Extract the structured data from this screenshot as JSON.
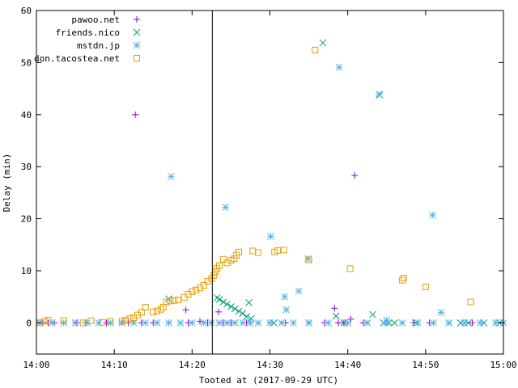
{
  "chart_data": {
    "type": "scatter",
    "title": "",
    "xlabel": "Tooted at (2017-09-29 UTC)",
    "ylabel": "Delay (min)",
    "xlim": [
      0,
      60
    ],
    "ylim": [
      -6,
      60
    ],
    "x_unit": "minutes after 14:00 UTC",
    "x_ticks": [
      {
        "value": 0,
        "label": "14:00"
      },
      {
        "value": 10,
        "label": "14:10"
      },
      {
        "value": 20,
        "label": "14:20"
      },
      {
        "value": 30,
        "label": "14:30"
      },
      {
        "value": 40,
        "label": "14:40"
      },
      {
        "value": 50,
        "label": "14:50"
      },
      {
        "value": 60,
        "label": "15:00"
      }
    ],
    "y_ticks": [
      0,
      10,
      20,
      30,
      40,
      50,
      60
    ],
    "grid": false,
    "legend_position": "top-left",
    "vertical_line": {
      "x": 22.6
    },
    "series": [
      {
        "name": "pawoo.net",
        "marker": "plus",
        "color": "#9400d3",
        "points": [
          [
            0.8,
            0
          ],
          [
            1.5,
            0
          ],
          [
            2.3,
            0
          ],
          [
            5.0,
            0
          ],
          [
            5.2,
            0
          ],
          [
            6.3,
            0
          ],
          [
            9.0,
            0
          ],
          [
            11.0,
            0
          ],
          [
            11.8,
            0
          ],
          [
            12.7,
            40.0
          ],
          [
            13.5,
            0
          ],
          [
            15.0,
            0
          ],
          [
            17.0,
            0
          ],
          [
            19.2,
            2.5
          ],
          [
            19.5,
            0
          ],
          [
            21.0,
            0.3
          ],
          [
            22.0,
            0
          ],
          [
            23.4,
            2.1
          ],
          [
            24.0,
            0
          ],
          [
            25.0,
            0
          ],
          [
            27.0,
            0
          ],
          [
            30.0,
            0
          ],
          [
            32.0,
            0
          ],
          [
            35.0,
            0
          ],
          [
            37.0,
            0
          ],
          [
            38.3,
            2.8
          ],
          [
            38.8,
            0
          ],
          [
            39.5,
            0
          ],
          [
            40.4,
            0.7
          ],
          [
            40.9,
            28.3
          ],
          [
            42.0,
            0
          ],
          [
            45.0,
            0
          ],
          [
            48.5,
            0
          ],
          [
            50.5,
            0
          ],
          [
            56.0,
            0
          ]
        ]
      },
      {
        "name": "friends.nico",
        "marker": "cross",
        "color": "#009e73",
        "points": [
          [
            17.0,
            4.6
          ],
          [
            23.2,
            4.8
          ],
          [
            23.5,
            4.5
          ],
          [
            24.0,
            4.0
          ],
          [
            24.5,
            3.6
          ],
          [
            25.0,
            3.1
          ],
          [
            25.5,
            2.7
          ],
          [
            26.0,
            2.2
          ],
          [
            26.5,
            1.8
          ],
          [
            27.0,
            1.2
          ],
          [
            27.3,
            3.9
          ],
          [
            27.6,
            0.8
          ],
          [
            30.5,
            0
          ],
          [
            35.0,
            0
          ],
          [
            36.8,
            53.8
          ],
          [
            38.5,
            1.3
          ],
          [
            39.5,
            0
          ],
          [
            42.5,
            0
          ],
          [
            43.2,
            1.6
          ],
          [
            44.1,
            43.8
          ],
          [
            44.6,
            0
          ],
          [
            45.3,
            0
          ],
          [
            46.0,
            0
          ],
          [
            48.7,
            0
          ],
          [
            53.0,
            0
          ],
          [
            54.5,
            0
          ],
          [
            55.5,
            0
          ],
          [
            57.5,
            0
          ],
          [
            59.5,
            0
          ]
        ]
      },
      {
        "name": "mstdn.jp",
        "marker": "star",
        "color": "#56b4e9",
        "points": [
          [
            0.5,
            0
          ],
          [
            2.0,
            0
          ],
          [
            3.5,
            0
          ],
          [
            5.0,
            0
          ],
          [
            6.5,
            0
          ],
          [
            8.0,
            0
          ],
          [
            9.5,
            0
          ],
          [
            11.0,
            0
          ],
          [
            12.5,
            0
          ],
          [
            14.0,
            0
          ],
          [
            15.5,
            0
          ],
          [
            17.0,
            0
          ],
          [
            18.5,
            0
          ],
          [
            20.0,
            0
          ],
          [
            21.5,
            0
          ],
          [
            22.5,
            0
          ],
          [
            23.5,
            0
          ],
          [
            24.5,
            0
          ],
          [
            25.5,
            0
          ],
          [
            26.5,
            0
          ],
          [
            27.5,
            0
          ],
          [
            28.5,
            0
          ],
          [
            30.0,
            0
          ],
          [
            31.5,
            0
          ],
          [
            33.0,
            0
          ],
          [
            35.0,
            0
          ],
          [
            37.5,
            0
          ],
          [
            40.0,
            0
          ],
          [
            42.5,
            0
          ],
          [
            45.0,
            0
          ],
          [
            47.0,
            0
          ],
          [
            49.0,
            0
          ],
          [
            51.0,
            0
          ],
          [
            53.0,
            0
          ],
          [
            55.0,
            0
          ],
          [
            57.0,
            0
          ],
          [
            59.0,
            0
          ],
          [
            60.0,
            0
          ],
          [
            17.3,
            28.1
          ],
          [
            24.3,
            22.2
          ],
          [
            30.1,
            16.6
          ],
          [
            31.9,
            5.0
          ],
          [
            32.1,
            2.5
          ],
          [
            33.7,
            6.1
          ],
          [
            34.9,
            12.3
          ],
          [
            38.9,
            49.1
          ],
          [
            44.0,
            43.9
          ],
          [
            45.0,
            0.5
          ],
          [
            50.9,
            20.7
          ],
          [
            52.0,
            2.0
          ]
        ]
      },
      {
        "name": "don.tacostea.net",
        "marker": "square",
        "color": "#e69f00",
        "points": [
          [
            0.5,
            0
          ],
          [
            1.0,
            0.3
          ],
          [
            1.5,
            0.5
          ],
          [
            3.5,
            0.4
          ],
          [
            6.0,
            0
          ],
          [
            7.0,
            0.4
          ],
          [
            8.5,
            0.1
          ],
          [
            9.5,
            0.3
          ],
          [
            11.0,
            0.3
          ],
          [
            11.5,
            0.5
          ],
          [
            12.0,
            0.8
          ],
          [
            12.5,
            1.0
          ],
          [
            13.0,
            1.5
          ],
          [
            13.5,
            2.0
          ],
          [
            14.0,
            3.0
          ],
          [
            15.0,
            2.1
          ],
          [
            15.5,
            2.3
          ],
          [
            16.0,
            2.6
          ],
          [
            16.3,
            3.0
          ],
          [
            16.7,
            4.0
          ],
          [
            17.2,
            4.2
          ],
          [
            17.7,
            4.3
          ],
          [
            18.2,
            4.4
          ],
          [
            19.0,
            4.9
          ],
          [
            19.5,
            5.5
          ],
          [
            20.0,
            6.0
          ],
          [
            20.5,
            6.3
          ],
          [
            21.0,
            6.7
          ],
          [
            21.5,
            7.2
          ],
          [
            22.0,
            8.0
          ],
          [
            22.5,
            8.5
          ],
          [
            22.8,
            9.1
          ],
          [
            23.0,
            9.8
          ],
          [
            23.2,
            10.5
          ],
          [
            23.5,
            11.0
          ],
          [
            24.0,
            12.2
          ],
          [
            24.5,
            11.5
          ],
          [
            25.0,
            12.0
          ],
          [
            25.4,
            12.3
          ],
          [
            25.7,
            13.0
          ],
          [
            26.0,
            13.6
          ],
          [
            27.8,
            13.8
          ],
          [
            28.5,
            13.5
          ],
          [
            30.6,
            13.6
          ],
          [
            31.0,
            13.9
          ],
          [
            31.8,
            14.0
          ],
          [
            35.0,
            12.1
          ],
          [
            35.8,
            52.4
          ],
          [
            40.3,
            10.4
          ],
          [
            47.0,
            8.2
          ],
          [
            47.2,
            8.6
          ],
          [
            50.0,
            6.9
          ],
          [
            55.8,
            4.0
          ]
        ]
      }
    ]
  }
}
